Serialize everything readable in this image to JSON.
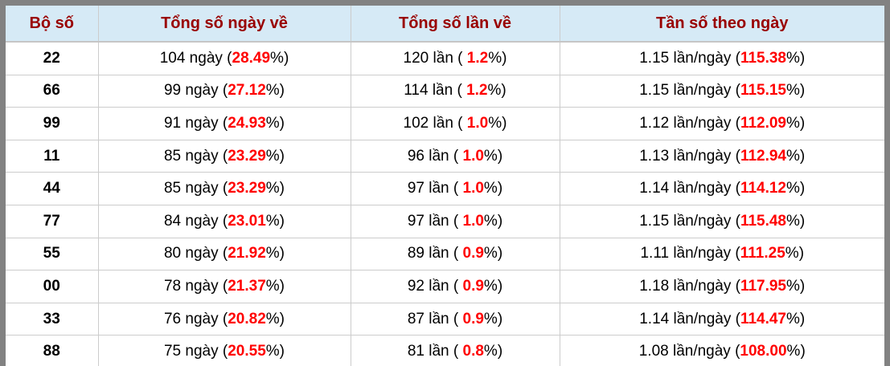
{
  "colors": {
    "frame_border": "#828282",
    "header_bg": "#d6eaf6",
    "header_text": "#990000",
    "cell_border": "#cccccc",
    "highlight_red": "#ff0000",
    "body_text": "#000000"
  },
  "table": {
    "headers": [
      "Bộ số",
      "Tổng số ngày về",
      "Tổng số lần về",
      "Tần số theo ngày"
    ],
    "rows": [
      {
        "set": "22",
        "days": {
          "pre": "104 ngày (",
          "red": "28.49",
          "post": "%)"
        },
        "times": {
          "pre": "120 lần ( ",
          "red": "1.2",
          "post": "%)"
        },
        "freq": {
          "pre": "1.15 lần/ngày (",
          "red": "115.38",
          "post": "%)"
        }
      },
      {
        "set": "66",
        "days": {
          "pre": "99 ngày (",
          "red": "27.12",
          "post": "%)"
        },
        "times": {
          "pre": "114 lần ( ",
          "red": "1.2",
          "post": "%)"
        },
        "freq": {
          "pre": "1.15 lần/ngày (",
          "red": "115.15",
          "post": "%)"
        }
      },
      {
        "set": "99",
        "days": {
          "pre": "91 ngày (",
          "red": "24.93",
          "post": "%)"
        },
        "times": {
          "pre": "102 lần ( ",
          "red": "1.0",
          "post": "%)"
        },
        "freq": {
          "pre": "1.12 lần/ngày (",
          "red": "112.09",
          "post": "%)"
        }
      },
      {
        "set": "11",
        "days": {
          "pre": "85 ngày (",
          "red": "23.29",
          "post": "%)"
        },
        "times": {
          "pre": "96 lần ( ",
          "red": "1.0",
          "post": "%)"
        },
        "freq": {
          "pre": "1.13 lần/ngày (",
          "red": "112.94",
          "post": "%)"
        }
      },
      {
        "set": "44",
        "days": {
          "pre": "85 ngày (",
          "red": "23.29",
          "post": "%)"
        },
        "times": {
          "pre": "97 lần ( ",
          "red": "1.0",
          "post": "%)"
        },
        "freq": {
          "pre": "1.14 lần/ngày (",
          "red": "114.12",
          "post": "%)"
        }
      },
      {
        "set": "77",
        "days": {
          "pre": "84 ngày (",
          "red": "23.01",
          "post": "%)"
        },
        "times": {
          "pre": "97 lần ( ",
          "red": "1.0",
          "post": "%)"
        },
        "freq": {
          "pre": "1.15 lần/ngày (",
          "red": "115.48",
          "post": "%)"
        }
      },
      {
        "set": "55",
        "days": {
          "pre": "80 ngày (",
          "red": "21.92",
          "post": "%)"
        },
        "times": {
          "pre": "89 lần ( ",
          "red": "0.9",
          "post": "%)"
        },
        "freq": {
          "pre": "1.11 lần/ngày (",
          "red": "111.25",
          "post": "%)"
        }
      },
      {
        "set": "00",
        "days": {
          "pre": "78 ngày (",
          "red": "21.37",
          "post": "%)"
        },
        "times": {
          "pre": "92 lần ( ",
          "red": "0.9",
          "post": "%)"
        },
        "freq": {
          "pre": "1.18 lần/ngày (",
          "red": "117.95",
          "post": "%)"
        }
      },
      {
        "set": "33",
        "days": {
          "pre": "76 ngày (",
          "red": "20.82",
          "post": "%)"
        },
        "times": {
          "pre": "87 lần ( ",
          "red": "0.9",
          "post": "%)"
        },
        "freq": {
          "pre": "1.14 lần/ngày (",
          "red": "114.47",
          "post": "%)"
        }
      },
      {
        "set": "88",
        "days": {
          "pre": "75 ngày (",
          "red": "20.55",
          "post": "%)"
        },
        "times": {
          "pre": "81 lần ( ",
          "red": "0.8",
          "post": "%)"
        },
        "freq": {
          "pre": "1.08 lần/ngày (",
          "red": "108.00",
          "post": "%)"
        }
      }
    ]
  }
}
